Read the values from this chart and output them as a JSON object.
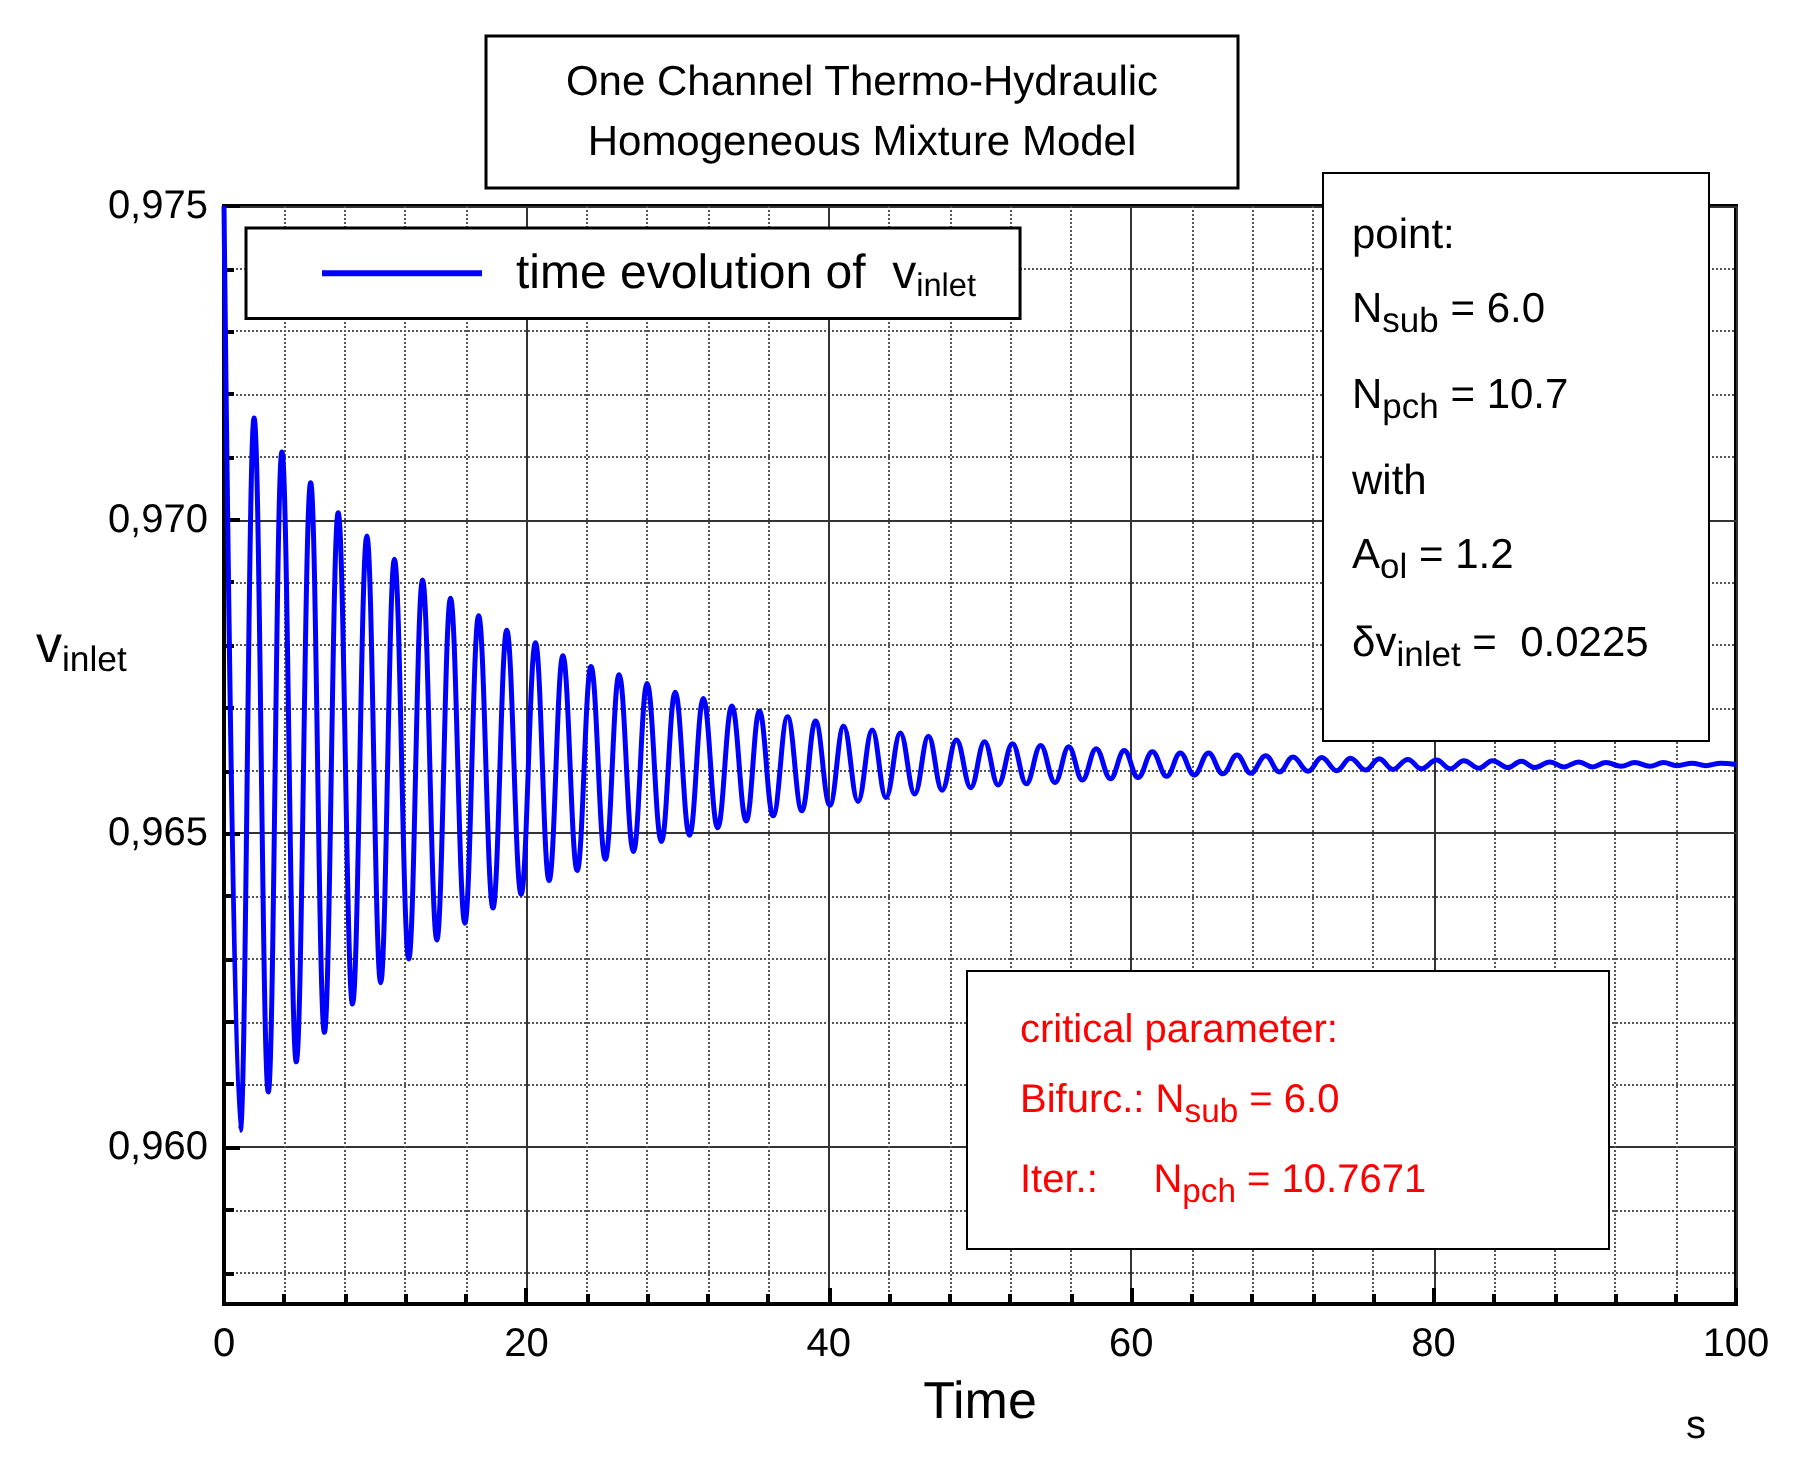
{
  "chart_data": {
    "type": "line",
    "title": "One Channel Thermo-Hydraulic\nHomogeneous Mixture Model",
    "xlabel": "Time",
    "ylabel": "v$_{inlet}$",
    "x": [
      0,
      1.08,
      1.99,
      2.93,
      3.83,
      4.78,
      5.73,
      6.64,
      7.55,
      8.5,
      9.45,
      10.36,
      11.27,
      12.22,
      13.13,
      14.08,
      14.98,
      15.93,
      16.84,
      17.79,
      18.7,
      19.65,
      20.6,
      21.5,
      22.41,
      23.36,
      24.27,
      25.22,
      26.13,
      27.08,
      27.98,
      28.93,
      29.84,
      30.79,
      31.7,
      32.65,
      33.59,
      34.54,
      35.41,
      36.32,
      37.27,
      38.22,
      39.12,
      40.07,
      40.98,
      41.93,
      42.87,
      43.78,
      44.73,
      45.68,
      46.59,
      47.49,
      48.44,
      49.39,
      50.3,
      51.2,
      52.15,
      53.06,
      54.01,
      54.96,
      55.87,
      56.77,
      57.68,
      58.63,
      59.54,
      60.45,
      61.4,
      62.35,
      63.25,
      64.16,
      65.11,
      66.06,
      67.0,
      67.9,
      68.9,
      69.8,
      70.7,
      71.7,
      72.6,
      73.6,
      74.5,
      75.5,
      76.4,
      77.3,
      78.3,
      79.2,
      80.2,
      81.1,
      82.0,
      83.0,
      83.9,
      84.9,
      85.8,
      86.7,
      87.7,
      88.6,
      89.6,
      90.5,
      91.4,
      92.4,
      93.3,
      94.3,
      95.2,
      96.1,
      97.1,
      98.0,
      99.0,
      100
    ],
    "series": [
      {
        "name": "time evolution of  v$_{inlet}$",
        "color": "#0000ff",
        "values": [
          0.975,
          0.96027,
          0.97162,
          0.96088,
          0.97108,
          0.96136,
          0.97059,
          0.96183,
          0.97011,
          0.96228,
          0.96974,
          0.96262,
          0.96937,
          0.963,
          0.96904,
          0.9633,
          0.96875,
          0.96357,
          0.96847,
          0.96381,
          0.96824,
          0.96403,
          0.96804,
          0.96425,
          0.96783,
          0.96441,
          0.96766,
          0.96459,
          0.96753,
          0.96471,
          0.96739,
          0.96487,
          0.96725,
          0.96497,
          0.96715,
          0.96509,
          0.96703,
          0.9652,
          0.96695,
          0.96528,
          0.96686,
          0.96536,
          0.96679,
          0.96545,
          0.96671,
          0.96551,
          0.96665,
          0.96557,
          0.9666,
          0.96563,
          0.96655,
          0.96569,
          0.96649,
          0.96573,
          0.96646,
          0.96577,
          0.96643,
          0.96579,
          0.9664,
          0.96581,
          0.96638,
          0.96585,
          0.96635,
          0.96587,
          0.96632,
          0.96589,
          0.9663,
          0.96591,
          0.96628,
          0.96593,
          0.96628,
          0.96595,
          0.96625,
          0.96596,
          0.96624,
          0.96598,
          0.96622,
          0.96599,
          0.96621,
          0.966,
          0.9662,
          0.96601,
          0.96619,
          0.96602,
          0.96618,
          0.96603,
          0.96617,
          0.96603,
          0.96616,
          0.96604,
          0.96616,
          0.96605,
          0.96615,
          0.96605,
          0.96614,
          0.96606,
          0.96614,
          0.96606,
          0.96613,
          0.96607,
          0.96613,
          0.96607,
          0.96613,
          0.96608,
          0.96612,
          0.96608,
          0.96612,
          0.9661
        ]
      }
    ],
    "xlim": [
      0,
      100
    ],
    "ylim": [
      0.9575,
      0.975
    ],
    "xticks": [
      0,
      {
        "value": 4,
        "label": null
      },
      {
        "value": 8,
        "label": null
      },
      {
        "value": 12,
        "label": null
      },
      {
        "value": 16,
        "label": null
      },
      20,
      {
        "value": 24,
        "label": null
      },
      {
        "value": 28,
        "label": null
      },
      {
        "value": 32,
        "label": null
      },
      {
        "value": 36,
        "label": null
      },
      40,
      {
        "value": 44,
        "label": null
      },
      {
        "value": 48,
        "label": null
      },
      {
        "value": 52,
        "label": null
      },
      {
        "value": 56,
        "label": null
      },
      60,
      {
        "value": 64,
        "label": null
      },
      {
        "value": 68,
        "label": null
      },
      {
        "value": 72,
        "label": null
      },
      {
        "value": 76,
        "label": null
      },
      80,
      {
        "value": 84,
        "label": null
      },
      {
        "value": 88,
        "label": null
      },
      {
        "value": 92,
        "label": null
      },
      {
        "value": 96,
        "label": null
      },
      100
    ],
    "yticks": [
      {
        "value": 0.958,
        "label": null
      },
      {
        "value": 0.959,
        "label": null
      },
      {
        "value": 0.96,
        "label": "0,960"
      },
      {
        "value": 0.961,
        "label": null
      },
      {
        "value": 0.962,
        "label": null
      },
      {
        "value": 0.963,
        "label": null
      },
      {
        "value": 0.964,
        "label": null
      },
      {
        "value": 0.965,
        "label": "0,965"
      },
      {
        "value": 0.966,
        "label": null
      },
      {
        "value": 0.967,
        "label": null
      },
      {
        "value": 0.968,
        "label": null
      },
      {
        "value": 0.969,
        "label": null
      },
      {
        "value": 0.97,
        "label": "0,970"
      },
      {
        "value": 0.971,
        "label": null
      },
      {
        "value": 0.972,
        "label": null
      },
      {
        "value": 0.973,
        "label": null
      },
      {
        "value": 0.974,
        "label": null
      },
      {
        "value": 0.975,
        "label": "0,975"
      }
    ],
    "grid": true,
    "legend": "top left",
    "marker": "none",
    "line_style": "solid",
    "annotations": [
      "point:\nN$_{sub}$ = 6.0\nN$_{pch}$ = 10.7\nwith\nA$_{ol}$ = 1.2\nδv$_{inlet}$ =  0.0225",
      "critical parameter:\nBifurc.: N$_{sub}$ = 6.0\nIter.:     N$_{pch}$ = 10.7671",
      "s"
    ]
  }
}
